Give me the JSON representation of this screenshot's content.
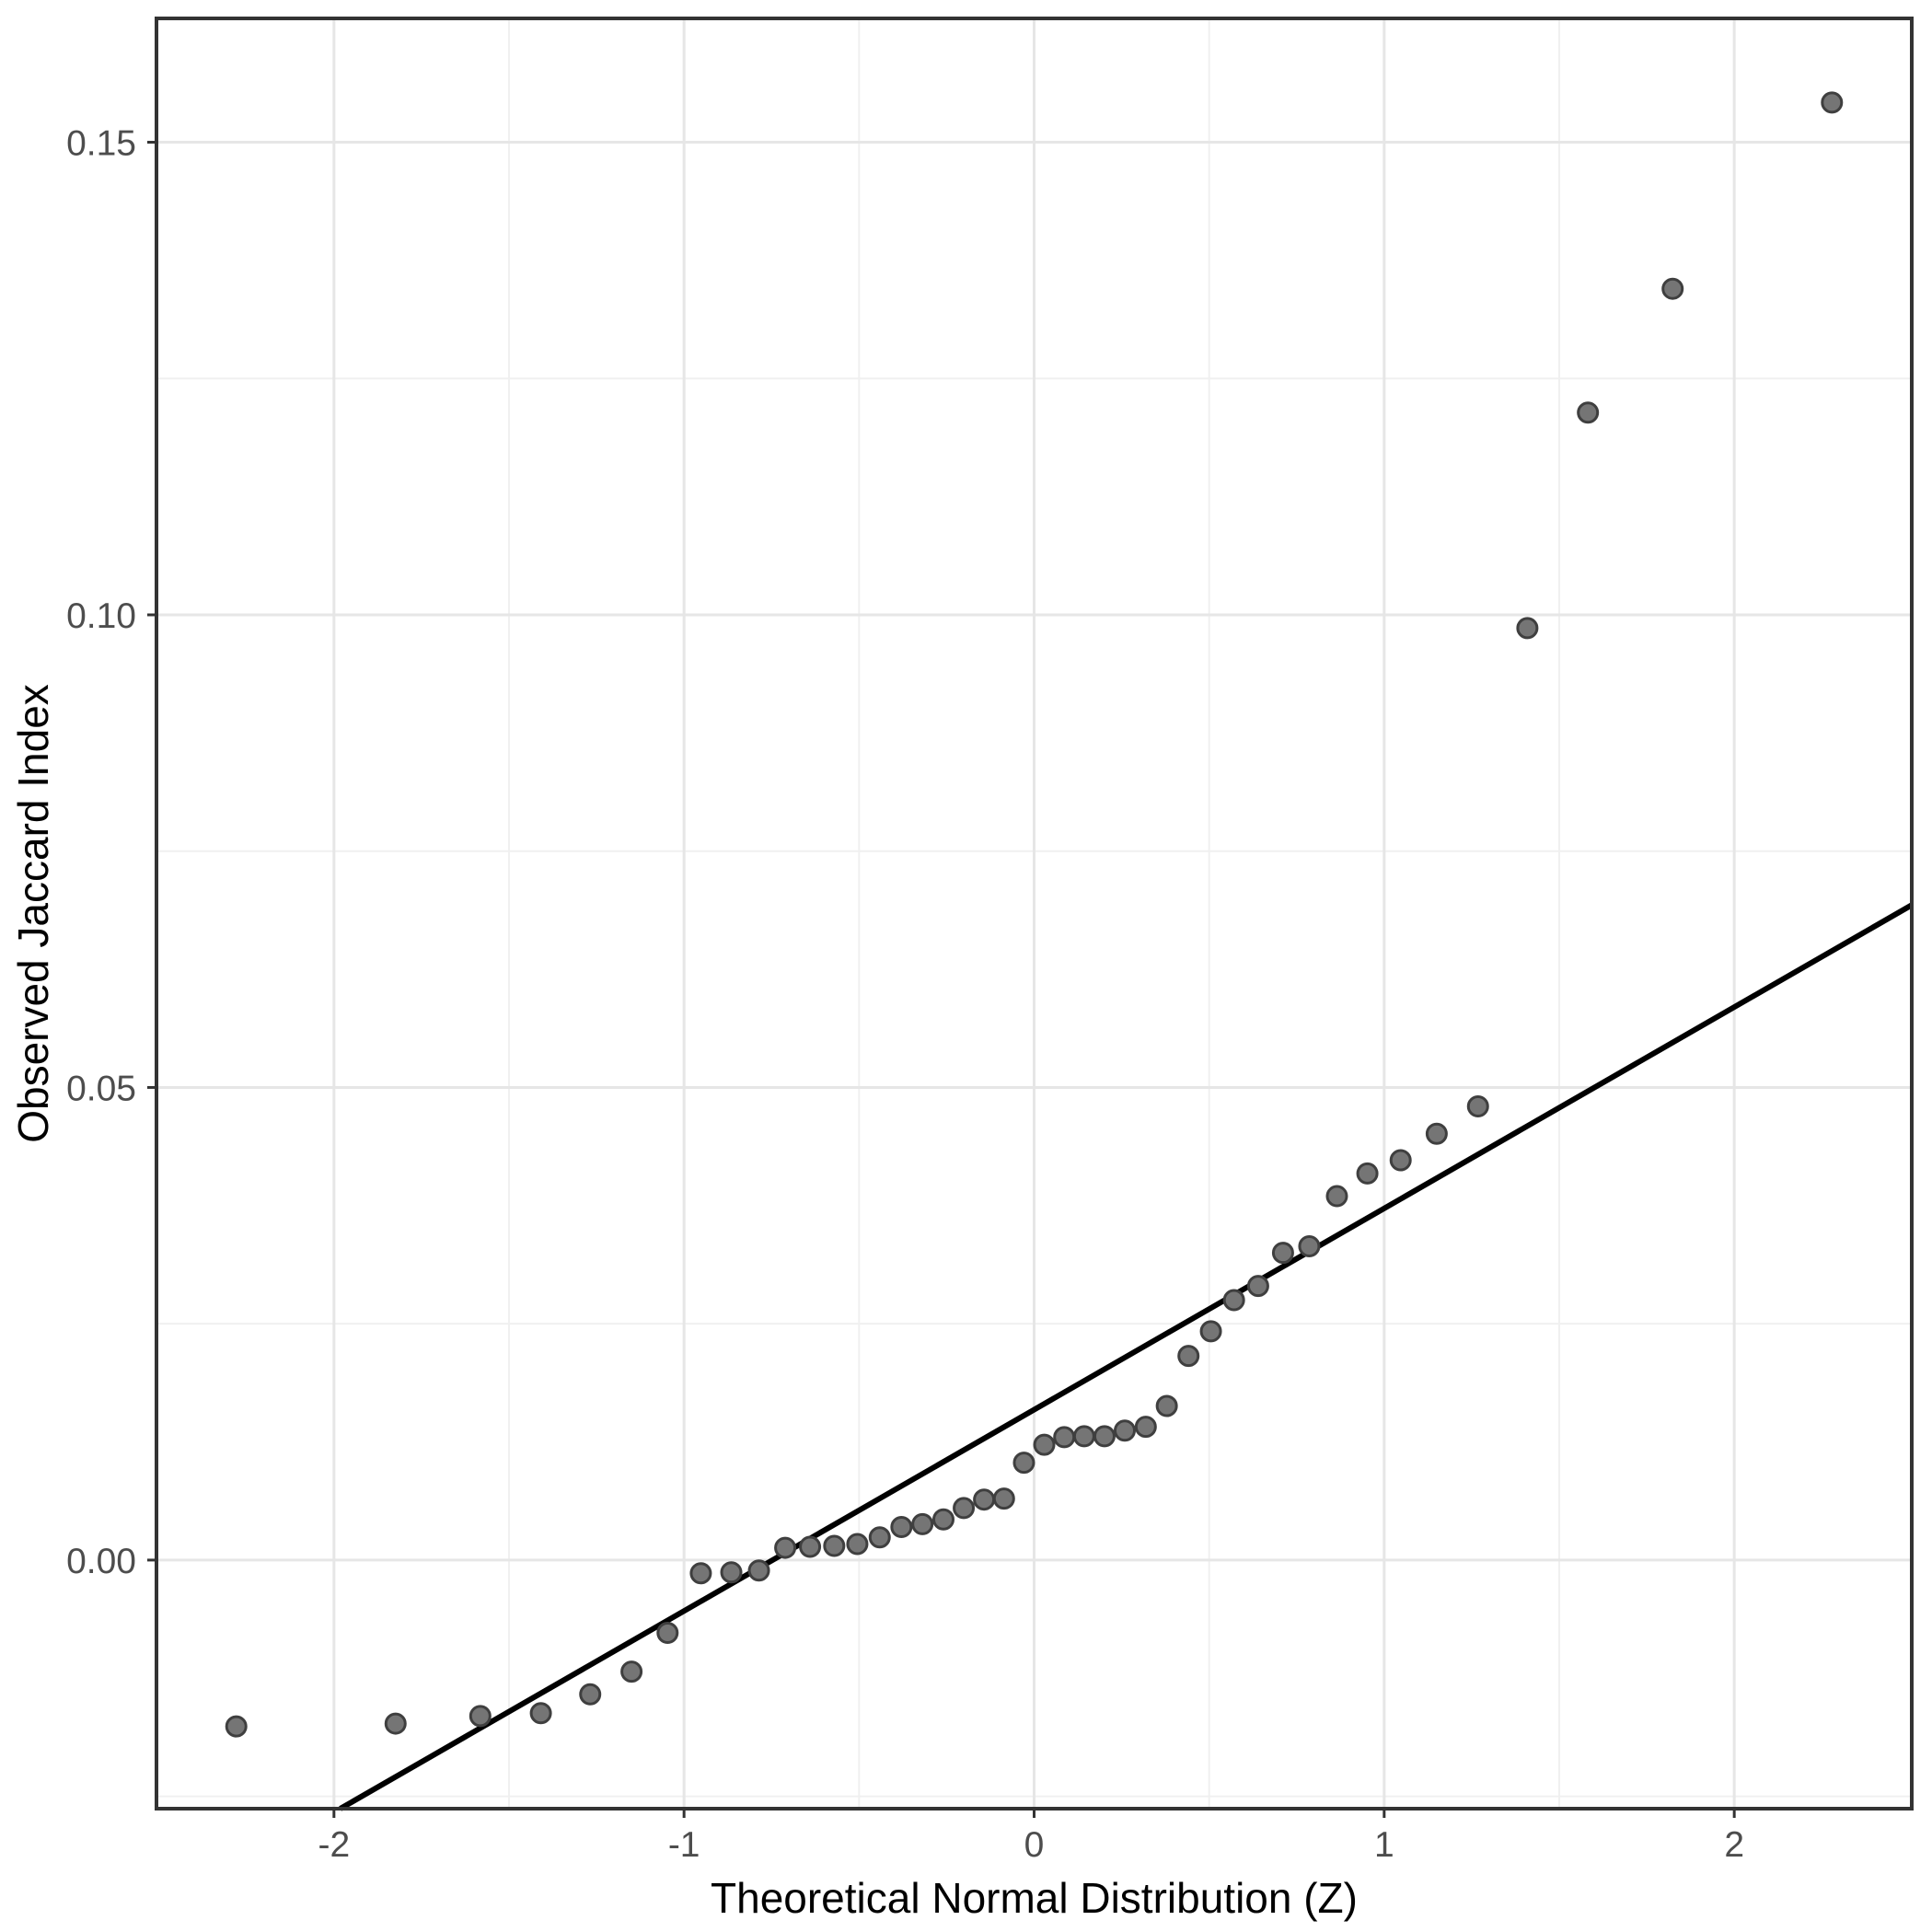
{
  "figure": {
    "background": "#ffffff"
  },
  "chart_data": {
    "type": "scatter",
    "kind": "qq-plot",
    "title": "",
    "xlabel": "Theoretical Normal Distribution (Z)",
    "ylabel": "Observed Jaccard Index",
    "xlim": [
      -2.507,
      2.507
    ],
    "ylim": [
      -0.0263,
      0.1631
    ],
    "grid": "on",
    "legend": "none",
    "x_axis": {
      "major_ticks": [
        {
          "value": -2,
          "label": "-2"
        },
        {
          "value": -1,
          "label": "-1"
        },
        {
          "value": 0,
          "label": "0"
        },
        {
          "value": 1,
          "label": "1"
        },
        {
          "value": 2,
          "label": "2"
        }
      ],
      "minor_gridlines": [
        -1.5,
        -0.5,
        0.5,
        1.5
      ]
    },
    "y_axis": {
      "major_ticks": [
        {
          "value": 0.0,
          "label": "0.00"
        },
        {
          "value": 0.05,
          "label": "0.05"
        },
        {
          "value": 0.1,
          "label": "0.10"
        },
        {
          "value": 0.15,
          "label": "0.15"
        }
      ],
      "minor_gridlines": [
        -0.025,
        0.025,
        0.075,
        0.125
      ]
    },
    "n_points": 44,
    "points": [
      {
        "z": -2.279,
        "y": -0.0176
      },
      {
        "z": -1.824,
        "y": -0.0173
      },
      {
        "z": -1.582,
        "y": -0.0165
      },
      {
        "z": -1.409,
        "y": -0.0162
      },
      {
        "z": -1.268,
        "y": -0.0142
      },
      {
        "z": -1.15,
        "y": -0.0118
      },
      {
        "z": -1.047,
        "y": -0.0077
      },
      {
        "z": -0.952,
        "y": -0.0014
      },
      {
        "z": -0.865,
        "y": -0.0013
      },
      {
        "z": -0.786,
        "y": -0.0011
      },
      {
        "z": -0.711,
        "y": 0.0013
      },
      {
        "z": -0.64,
        "y": 0.0014
      },
      {
        "z": -0.571,
        "y": 0.0015
      },
      {
        "z": -0.505,
        "y": 0.0017
      },
      {
        "z": -0.441,
        "y": 0.0024
      },
      {
        "z": -0.379,
        "y": 0.0035
      },
      {
        "z": -0.319,
        "y": 0.0038
      },
      {
        "z": -0.259,
        "y": 0.0043
      },
      {
        "z": -0.201,
        "y": 0.0055
      },
      {
        "z": -0.143,
        "y": 0.0064
      },
      {
        "z": -0.086,
        "y": 0.0065
      },
      {
        "z": -0.029,
        "y": 0.0103
      },
      {
        "z": 0.029,
        "y": 0.0122
      },
      {
        "z": 0.086,
        "y": 0.013
      },
      {
        "z": 0.143,
        "y": 0.0131
      },
      {
        "z": 0.201,
        "y": 0.0131
      },
      {
        "z": 0.259,
        "y": 0.0137
      },
      {
        "z": 0.319,
        "y": 0.0141
      },
      {
        "z": 0.379,
        "y": 0.0163
      },
      {
        "z": 0.441,
        "y": 0.0216
      },
      {
        "z": 0.505,
        "y": 0.0242
      },
      {
        "z": 0.571,
        "y": 0.0275
      },
      {
        "z": 0.64,
        "y": 0.029
      },
      {
        "z": 0.711,
        "y": 0.0325
      },
      {
        "z": 0.786,
        "y": 0.0332
      },
      {
        "z": 0.865,
        "y": 0.0385
      },
      {
        "z": 0.952,
        "y": 0.0409
      },
      {
        "z": 1.047,
        "y": 0.0423
      },
      {
        "z": 1.15,
        "y": 0.0451
      },
      {
        "z": 1.268,
        "y": 0.048
      },
      {
        "z": 1.409,
        "y": 0.0986
      },
      {
        "z": 1.582,
        "y": 0.1214
      },
      {
        "z": 1.824,
        "y": 0.1345
      },
      {
        "z": 2.279,
        "y": 0.1542
      }
    ],
    "qq_line": {
      "slope": 0.0213,
      "intercept": 0.0159,
      "from": {
        "z": -1.982,
        "y": -0.0263
      },
      "to": {
        "z": 2.507,
        "y": 0.0693
      }
    },
    "colors": {
      "background": "#ffffff",
      "panel_background": "#ffffff",
      "panel_border": "#333333",
      "grid_major": "#e6e6e6",
      "grid_minor": "#f0f0f0",
      "point_fill": "#757575",
      "point_stroke": "#3f3f3f",
      "reference_line": "#000000",
      "tick_label": "#4d4d4d",
      "axis_title": "#000000"
    }
  }
}
